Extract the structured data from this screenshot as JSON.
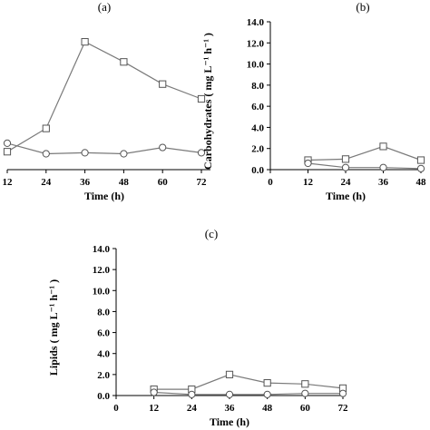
{
  "chart_data": [
    {
      "type": "line",
      "panel_label": "(a)",
      "xlabel": "Time (h)",
      "ylabel": "",
      "x_ticks": [
        "12",
        "24",
        "36",
        "48",
        "60",
        "72"
      ],
      "y_ticks": [],
      "xlim": [
        12,
        72
      ],
      "ylim": [
        0,
        14
      ],
      "series": [
        {
          "marker": "square",
          "x": [
            12,
            24,
            36,
            48,
            60,
            72
          ],
          "y": [
            1.7,
            3.9,
            12.1,
            10.2,
            8.1,
            6.7
          ]
        },
        {
          "marker": "circle",
          "x": [
            12,
            24,
            36,
            48,
            60,
            72
          ],
          "y": [
            2.5,
            1.5,
            1.6,
            1.5,
            2.1,
            1.6
          ]
        }
      ]
    },
    {
      "type": "line",
      "panel_label": "(b)",
      "xlabel": "Time (h)",
      "ylabel": "Carbohydrates ( mg L⁻¹ h⁻¹ )",
      "x_ticks": [
        "0",
        "12",
        "24",
        "36",
        "48"
      ],
      "y_ticks": [
        "0.0",
        "2.0",
        "4.0",
        "6.0",
        "8.0",
        "10.0",
        "12.0",
        "14.0"
      ],
      "xlim": [
        0,
        48
      ],
      "ylim": [
        0,
        14
      ],
      "series": [
        {
          "marker": "square",
          "x": [
            12,
            24,
            36,
            48
          ],
          "y": [
            0.9,
            1.0,
            2.2,
            0.9
          ]
        },
        {
          "marker": "circle",
          "x": [
            12,
            24,
            36,
            48
          ],
          "y": [
            0.6,
            0.2,
            0.2,
            0.1
          ]
        }
      ]
    },
    {
      "type": "line",
      "panel_label": "(c)",
      "xlabel": "Time (h)",
      "ylabel": "Lipids ( mg L⁻¹ h⁻¹ )",
      "x_ticks": [
        "0",
        "12",
        "24",
        "36",
        "48",
        "60",
        "72"
      ],
      "y_ticks": [
        "0.0",
        "2.0",
        "4.0",
        "6.0",
        "8.0",
        "10.0",
        "12.0",
        "14.0"
      ],
      "xlim": [
        0,
        72
      ],
      "ylim": [
        0,
        14
      ],
      "series": [
        {
          "marker": "square",
          "x": [
            12,
            24,
            36,
            48,
            60,
            72
          ],
          "y": [
            0.6,
            0.6,
            2.0,
            1.2,
            1.1,
            0.7
          ]
        },
        {
          "marker": "circle",
          "x": [
            12,
            24,
            36,
            48,
            60,
            72
          ],
          "y": [
            0.3,
            0.1,
            0.1,
            0.1,
            0.2,
            0.2
          ]
        }
      ]
    }
  ]
}
